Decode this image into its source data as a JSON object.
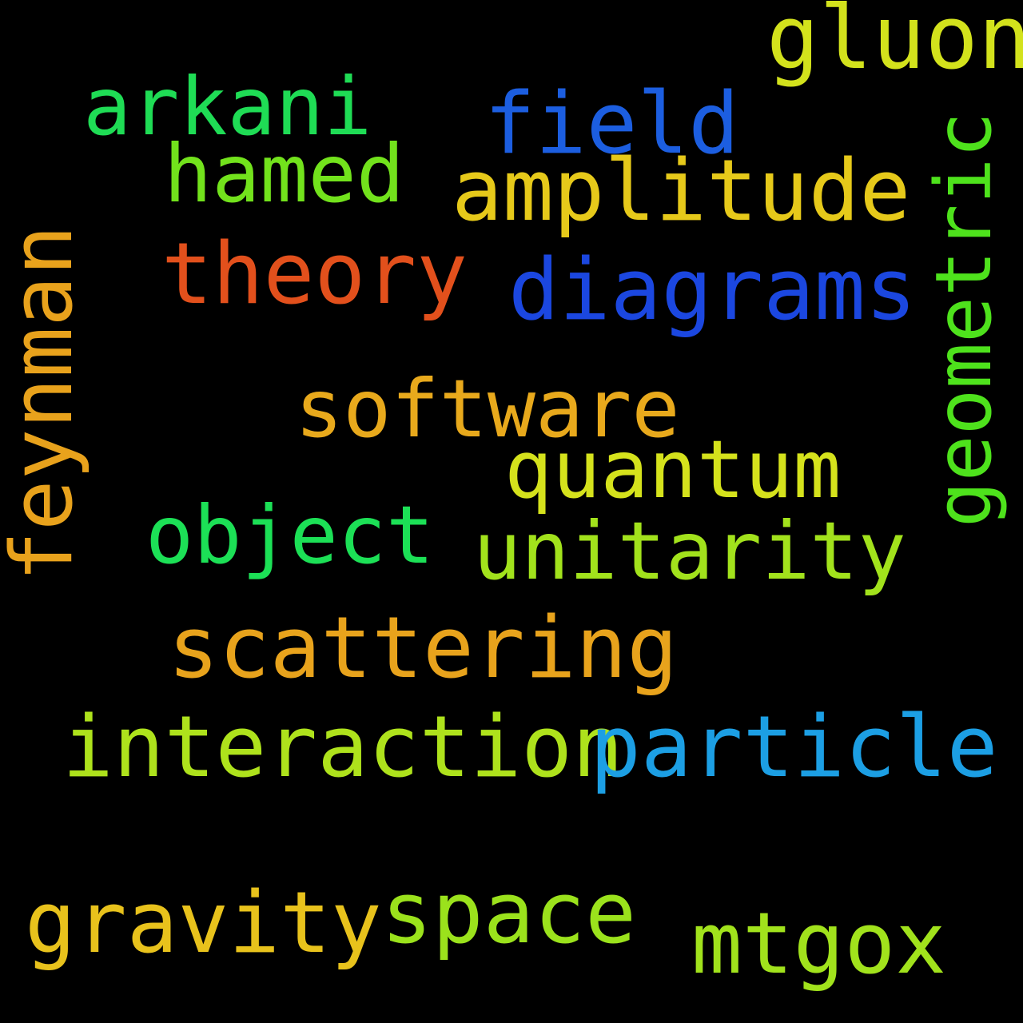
{
  "background": "#000000",
  "words": {
    "gluon": {
      "text": "gluon",
      "color": "#d3e21c"
    },
    "arkani": {
      "text": "arkani",
      "color": "#1fdc55"
    },
    "field": {
      "text": "field",
      "color": "#1c5ee0"
    },
    "hamed": {
      "text": "hamed",
      "color": "#72e21c"
    },
    "amplitude": {
      "text": "amplitude",
      "color": "#e6c91a"
    },
    "theory": {
      "text": "theory",
      "color": "#e2501c"
    },
    "diagrams": {
      "text": "diagrams",
      "color": "#1b47e0"
    },
    "software": {
      "text": "software",
      "color": "#e8a91c"
    },
    "quantum": {
      "text": "quantum",
      "color": "#d5e21c"
    },
    "object": {
      "text": "object",
      "color": "#1ce056"
    },
    "unitarity": {
      "text": "unitarity",
      "color": "#a2e21c"
    },
    "scattering": {
      "text": "scattering",
      "color": "#e8a31c"
    },
    "interaction": {
      "text": "interaction",
      "color": "#aee21c"
    },
    "particle": {
      "text": "particle",
      "color": "#1c9fe4"
    },
    "space": {
      "text": "space",
      "color": "#9be21c"
    },
    "gravity": {
      "text": "gravity",
      "color": "#e8c21c"
    },
    "mtgox": {
      "text": "mtgox",
      "color": "#a1e21c"
    },
    "feynman": {
      "text": "feynman",
      "color": "#e8a21c"
    },
    "geometric": {
      "text": "geometric",
      "color": "#4ee21c"
    }
  }
}
